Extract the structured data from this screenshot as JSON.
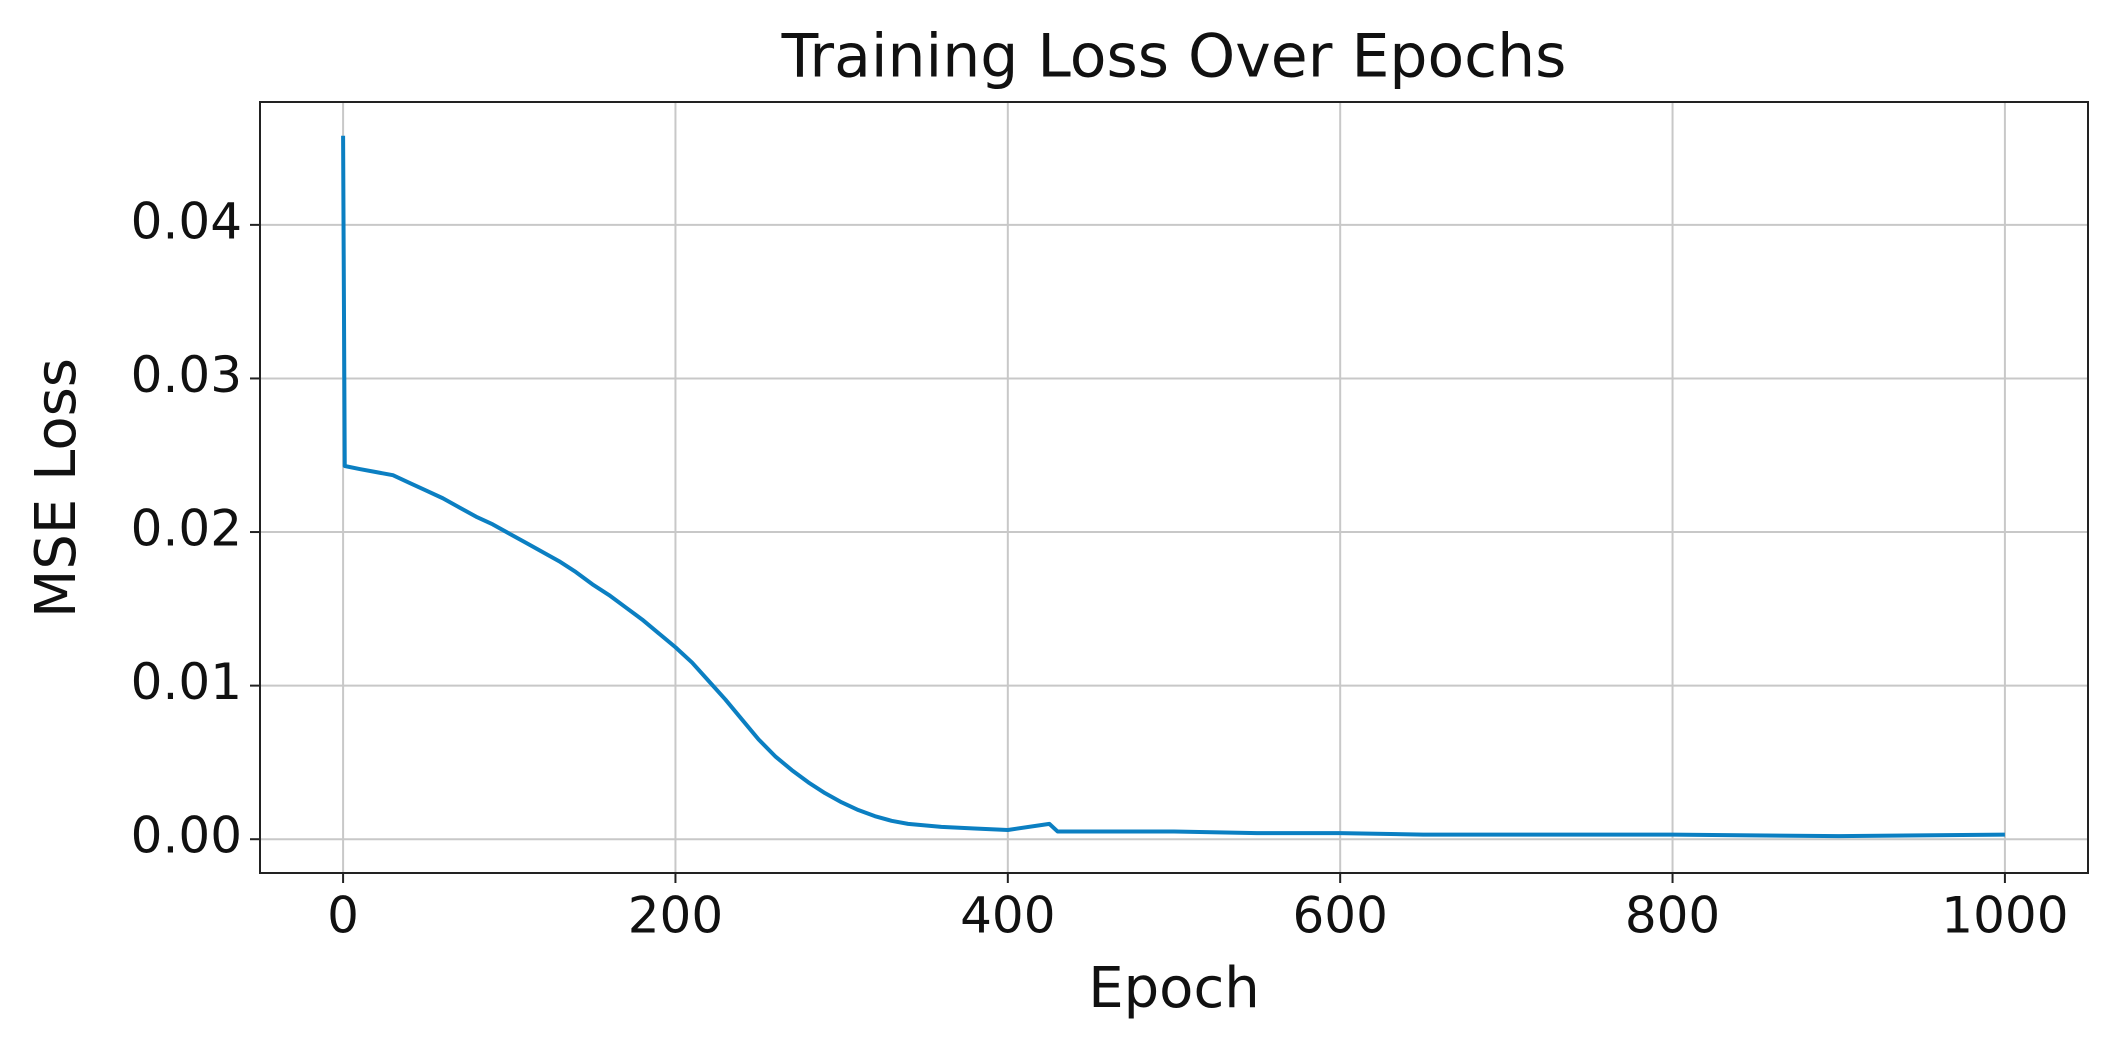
{
  "chart_data": {
    "type": "line",
    "title": "Training Loss Over Epochs",
    "x_label": "Epoch",
    "y_label": "MSE Loss",
    "x": [
      0,
      1,
      10,
      20,
      30,
      40,
      50,
      60,
      70,
      80,
      90,
      100,
      110,
      120,
      130,
      140,
      150,
      160,
      170,
      180,
      190,
      200,
      210,
      220,
      230,
      240,
      250,
      260,
      270,
      280,
      290,
      300,
      310,
      320,
      330,
      340,
      350,
      360,
      380,
      400,
      425,
      430,
      450,
      500,
      550,
      600,
      650,
      700,
      800,
      900,
      1000
    ],
    "series": [
      {
        "name": "Training Loss",
        "color": "#0b7fc2",
        "values": [
          0.0458,
          0.0243,
          0.0241,
          0.0239,
          0.0237,
          0.0232,
          0.0227,
          0.0222,
          0.0216,
          0.021,
          0.0205,
          0.0199,
          0.0193,
          0.0187,
          0.0181,
          0.0174,
          0.0166,
          0.0159,
          0.0151,
          0.0143,
          0.0134,
          0.0125,
          0.0115,
          0.0103,
          0.0091,
          0.0078,
          0.0065,
          0.0054,
          0.0045,
          0.0037,
          0.003,
          0.0024,
          0.0019,
          0.0015,
          0.0012,
          0.001,
          0.0009,
          0.0008,
          0.0007,
          0.0006,
          0.001,
          0.0005,
          0.0005,
          0.0005,
          0.0004,
          0.0004,
          0.0003,
          0.0003,
          0.0003,
          0.0002,
          0.0003
        ]
      }
    ],
    "xlim": [
      -50,
      1050
    ],
    "ylim": [
      -0.0022,
      0.048
    ],
    "xticks": [
      0,
      200,
      400,
      600,
      800,
      1000
    ],
    "yticks": [
      {
        "value": 0,
        "label": "0.00"
      },
      {
        "value": 0.01,
        "label": "0.01"
      },
      {
        "value": 0.02,
        "label": "0.02"
      },
      {
        "value": 0.03,
        "label": "0.03"
      },
      {
        "value": 0.04,
        "label": "0.04"
      }
    ],
    "grid": true
  }
}
